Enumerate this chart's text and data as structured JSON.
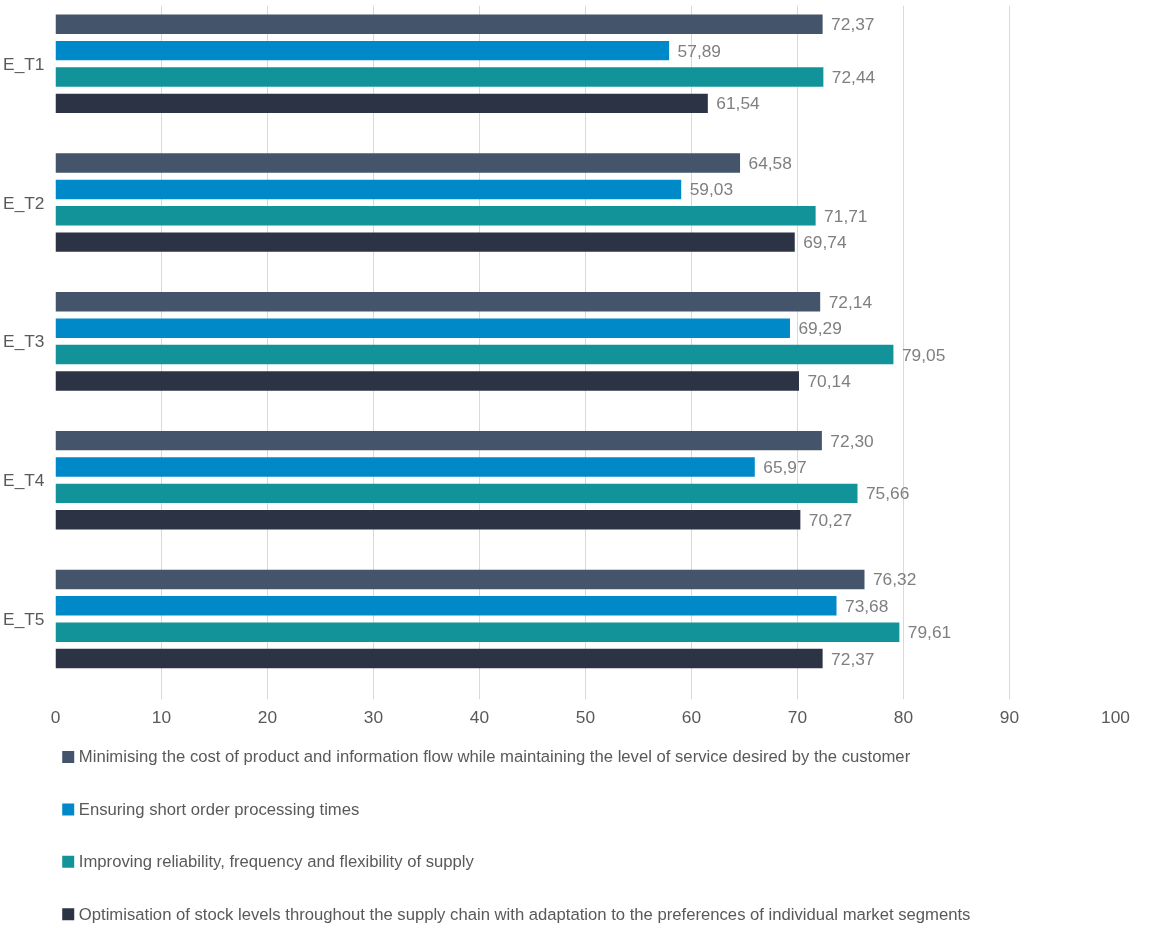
{
  "chart_data": {
    "type": "bar",
    "orientation": "horizontal",
    "categories": [
      "E_T1",
      "E_T2",
      "E_T3",
      "E_T4",
      "E_T5"
    ],
    "xlim": [
      0,
      100
    ],
    "xticks": [
      0,
      10,
      20,
      30,
      40,
      50,
      60,
      70,
      80,
      90,
      100
    ],
    "grid": "x",
    "legend": "bottom",
    "series": [
      {
        "name": "Minimising the cost of product and information flow while maintaining the level of service desired by the customer",
        "color": "#44546a",
        "values": [
          72.37,
          64.58,
          72.14,
          72.3,
          76.32
        ],
        "value_labels": [
          "72,37",
          "64,58",
          "72,14",
          "72,30",
          "76,32"
        ]
      },
      {
        "name": "Ensuring short order processing times",
        "color": "#0089c9",
        "values": [
          57.89,
          59.03,
          69.29,
          65.97,
          73.68
        ],
        "value_labels": [
          "57,89",
          "59,03",
          "69,29",
          "65,97",
          "73,68"
        ]
      },
      {
        "name": "Improving reliability, frequency and flexibility of supply",
        "color": "#12939a",
        "values": [
          72.44,
          71.71,
          79.05,
          75.66,
          79.61
        ],
        "value_labels": [
          "72,44",
          "71,71",
          "79,05",
          "75,66",
          "79,61"
        ]
      },
      {
        "name": "Optimisation of stock levels throughout the supply chain with adaptation to the preferences of individual market segments",
        "color": "#2b3344",
        "values": [
          61.54,
          69.74,
          70.14,
          70.27,
          72.37
        ],
        "value_labels": [
          "61,54",
          "69,74",
          "70,14",
          "70,27",
          "72,37"
        ]
      }
    ]
  }
}
